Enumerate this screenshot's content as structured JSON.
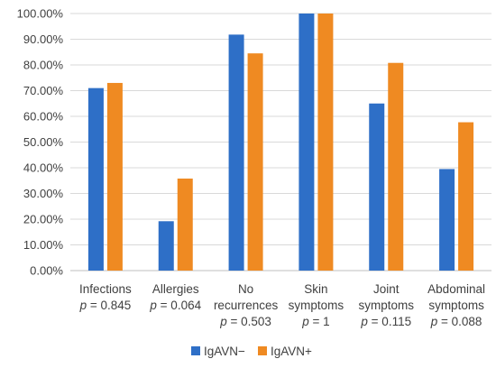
{
  "chart_data": {
    "type": "bar",
    "ylim": [
      0,
      100
    ],
    "y_tick_labels": [
      "0.00%",
      "10.00%",
      "20.00%",
      "30.00%",
      "40.00%",
      "50.00%",
      "60.00%",
      "70.00%",
      "80.00%",
      "90.00%",
      "100.00%"
    ],
    "grid": true,
    "legend_position": "bottom",
    "categories": [
      {
        "label_lines": [
          "Infections"
        ],
        "p_value": "0.845"
      },
      {
        "label_lines": [
          "Allergies"
        ],
        "p_value": "0.064"
      },
      {
        "label_lines": [
          "No",
          "recurrences"
        ],
        "p_value": "0.503"
      },
      {
        "label_lines": [
          "Skin",
          "symptoms"
        ],
        "p_value": "1"
      },
      {
        "label_lines": [
          "Joint",
          "symptoms"
        ],
        "p_value": "0.115"
      },
      {
        "label_lines": [
          "Abdominal",
          "symptoms"
        ],
        "p_value": "0.088"
      }
    ],
    "p_prefix": "p",
    "series": [
      {
        "name": "IgAVN−",
        "color": "#2e6fc7",
        "values": [
          71,
          19.2,
          91.8,
          100,
          65,
          39.5
        ]
      },
      {
        "name": "IgAVN+",
        "color": "#ef8a22",
        "values": [
          73,
          35.8,
          84.5,
          100,
          80.8,
          57.7
        ]
      }
    ]
  }
}
